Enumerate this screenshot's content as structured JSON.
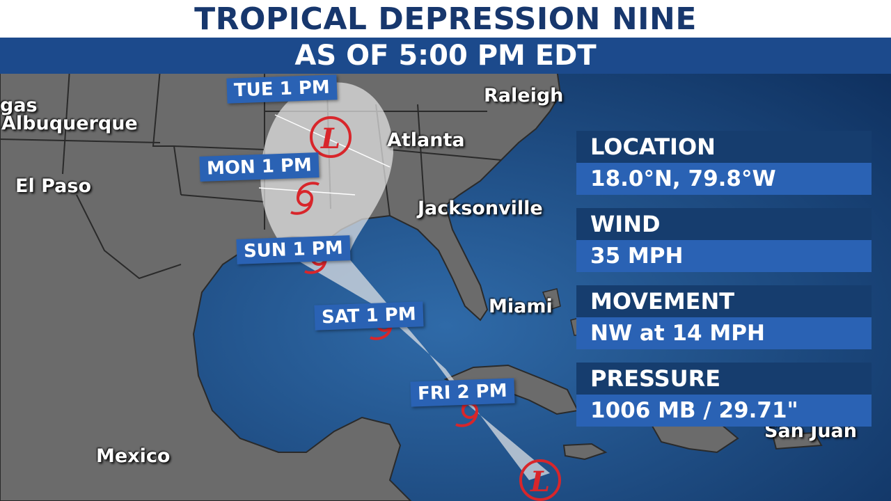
{
  "header": {
    "title": "TROPICAL DEPRESSION NINE",
    "subtitle": "AS OF 5:00 PM EDT"
  },
  "cities": {
    "vegas": "gas",
    "albuquerque": "Albuquerque",
    "el_paso": "El Paso",
    "mexico": "Mexico",
    "raleigh": "Raleigh",
    "atlanta": "Atlanta",
    "jacksonville": "Jacksonville",
    "miami": "Miami",
    "san_juan": "San Juan"
  },
  "forecast_points": [
    {
      "time": "TUE 1 PM",
      "symbol": "L"
    },
    {
      "time": "MON 1 PM",
      "symbol": "hurricane-symbol"
    },
    {
      "time": "SUN 1 PM",
      "symbol": "hurricane-symbol"
    },
    {
      "time": "SAT 1 PM",
      "symbol": "hurricane-symbol"
    },
    {
      "time": "FRI 2 PM",
      "symbol": "hurricane-symbol"
    }
  ],
  "current_position_symbol": "L",
  "info": {
    "location_label": "LOCATION",
    "location_value": "18.0°N,  79.8°W",
    "wind_label": "WIND",
    "wind_value": "35 MPH",
    "movement_label": "MOVEMENT",
    "movement_value": "NW at 14 MPH",
    "pressure_label": "PRESSURE",
    "pressure_value": "1006 MB / 29.71\""
  },
  "colors": {
    "land": "#6b6b6b",
    "water": "#163d6e",
    "title_text": "#17376d",
    "accent_blue": "#2a62b4",
    "storm_red": "#d8262b",
    "cone": "#e8e8e8"
  }
}
